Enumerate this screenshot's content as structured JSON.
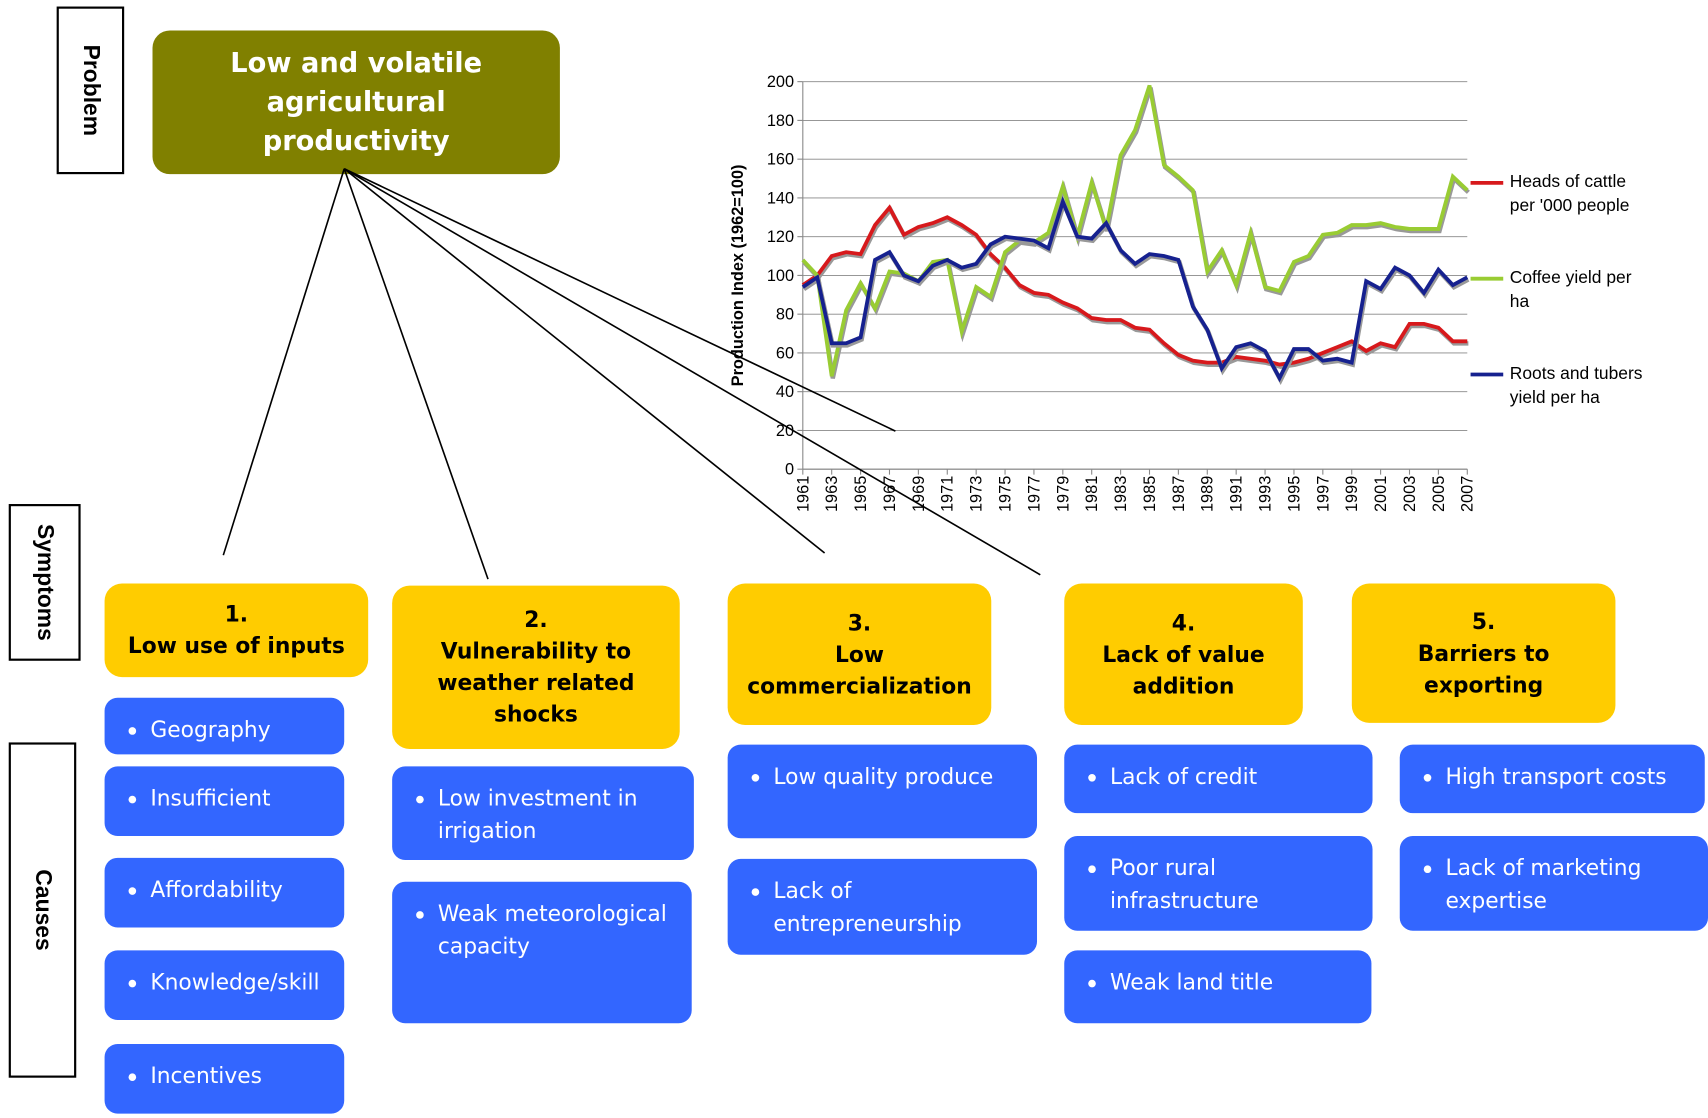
{
  "side_labels": [
    "Problem",
    "Symptoms",
    "Causes"
  ],
  "problem": "Low and volatile agricultural productivity",
  "symptoms": [
    {
      "number": "1.",
      "label": "Low use of inputs",
      "causes": [
        "Geography",
        "Insufficient",
        "Affordability",
        "Knowledge/skill",
        "Incentives"
      ]
    },
    {
      "number": "2.",
      "label": "Vulnerability to weather related shocks",
      "causes": [
        "Low investment in irrigation",
        "Weak meteorological capacity"
      ]
    },
    {
      "number": "3.",
      "label": "Low commercialization",
      "causes": [
        "Low quality produce",
        "Lack of entrepreneurship"
      ]
    },
    {
      "number": "4.",
      "label": "Lack of value addition",
      "causes": [
        "Lack of credit",
        "Poor rural infrastructure",
        "Weak land title"
      ]
    },
    {
      "number": "5.",
      "label": "Barriers to exporting",
      "causes": [
        "High transport costs",
        "Lack of marketing expertise"
      ]
    }
  ],
  "chart_data": {
    "type": "line",
    "y_label": "Production Index (1962=100)",
    "x": [
      1961,
      1962,
      1963,
      1964,
      1965,
      1966,
      1967,
      1968,
      1969,
      1970,
      1971,
      1972,
      1973,
      1974,
      1975,
      1976,
      1977,
      1978,
      1979,
      1980,
      1981,
      1982,
      1983,
      1984,
      1985,
      1986,
      1987,
      1988,
      1989,
      1990,
      1991,
      1992,
      1993,
      1994,
      1995,
      1996,
      1997,
      1998,
      1999,
      2000,
      2001,
      2002,
      2003,
      2004,
      2005,
      2006,
      2007
    ],
    "xlim": [
      1961,
      2007
    ],
    "xticks": [
      1961,
      1963,
      1965,
      1967,
      1969,
      1971,
      1973,
      1975,
      1977,
      1979,
      1981,
      1983,
      1985,
      1987,
      1989,
      1991,
      1993,
      1995,
      1997,
      1999,
      2001,
      2003,
      2005,
      2007
    ],
    "ylim": [
      0,
      200
    ],
    "yticks": [
      0,
      20,
      40,
      60,
      80,
      100,
      120,
      140,
      160,
      180,
      200
    ],
    "series": [
      {
        "name": "Heads of cattle per '000 people",
        "color": "#d7191c",
        "values": [
          95,
          100,
          110,
          112,
          111,
          126,
          135,
          121,
          125,
          127,
          130,
          126,
          121,
          111,
          104,
          95,
          91,
          90,
          86,
          83,
          78,
          77,
          77,
          73,
          72,
          65,
          59,
          56,
          55,
          55,
          58,
          57,
          56,
          54,
          55,
          57,
          60,
          63,
          66,
          61,
          65,
          63,
          75,
          75,
          73,
          66,
          66
        ]
      },
      {
        "name": "Coffee yield per ha",
        "color": "#99cc33",
        "values": [
          108,
          100,
          48,
          82,
          96,
          83,
          102,
          101,
          97,
          107,
          108,
          71,
          94,
          89,
          112,
          118,
          117,
          122,
          146,
          120,
          148,
          124,
          162,
          175,
          198,
          157,
          151,
          144,
          102,
          113,
          95,
          122,
          94,
          92,
          107,
          110,
          121,
          122,
          126,
          126,
          127,
          125,
          124,
          124,
          124,
          151,
          144
        ]
      },
      {
        "name": "Roots and tubers yield per ha",
        "color": "#16218f",
        "values": [
          94,
          99,
          65,
          65,
          68,
          108,
          112,
          100,
          97,
          105,
          108,
          104,
          106,
          116,
          120,
          119,
          118,
          114,
          138,
          120,
          119,
          127,
          113,
          106,
          111,
          110,
          108,
          84,
          72,
          52,
          63,
          65,
          61,
          47,
          62,
          62,
          56,
          57,
          55,
          97,
          93,
          104,
          100,
          91,
          103,
          95,
          99
        ]
      }
    ]
  }
}
